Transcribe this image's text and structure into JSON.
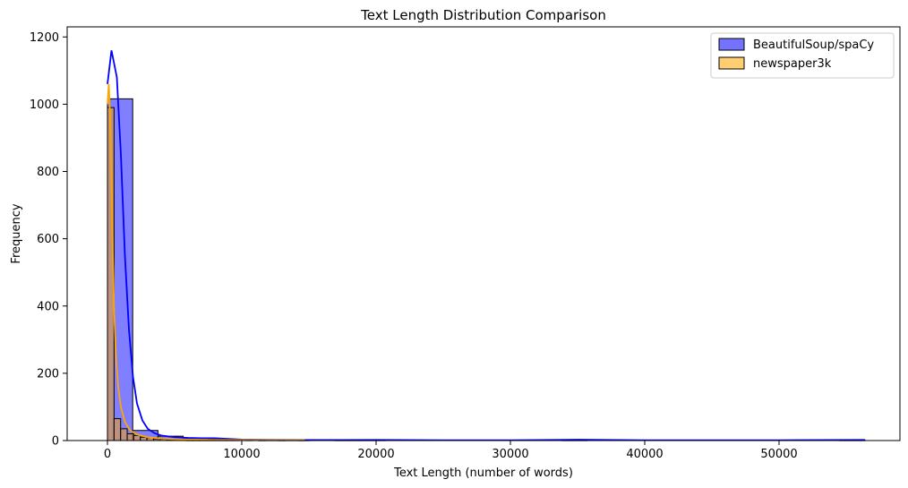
{
  "chart_data": {
    "type": "histogram",
    "title": "Text Length Distribution Comparison",
    "xlabel": "Text Length (number of words)",
    "ylabel": "Frequency",
    "xlim": [
      -3000,
      59000
    ],
    "ylim": [
      0,
      1230
    ],
    "xticks": [
      0,
      10000,
      20000,
      30000,
      40000,
      50000
    ],
    "yticks": [
      0,
      200,
      400,
      600,
      800,
      1000,
      1200
    ],
    "legend_position": "top-right",
    "series": [
      {
        "name": "BeautifulSoup/spaCy",
        "color": "#0000ff",
        "bin_width": 1880,
        "bins": [
          {
            "x0": 0,
            "x1": 1880,
            "count": 1016
          },
          {
            "x0": 1880,
            "x1": 3760,
            "count": 30
          },
          {
            "x0": 3760,
            "x1": 5640,
            "count": 13
          },
          {
            "x0": 5640,
            "x1": 7520,
            "count": 7
          },
          {
            "x0": 7520,
            "x1": 9400,
            "count": 5
          },
          {
            "x0": 9400,
            "x1": 11280,
            "count": 2
          },
          {
            "x0": 11280,
            "x1": 13160,
            "count": 1
          },
          {
            "x0": 13160,
            "x1": 15040,
            "count": 1
          },
          {
            "x0": 15040,
            "x1": 16920,
            "count": 0
          },
          {
            "x0": 16920,
            "x1": 18800,
            "count": 1
          },
          {
            "x0": 18800,
            "x1": 20680,
            "count": 1
          },
          {
            "x0": 20680,
            "x1": 22560,
            "count": 0
          },
          {
            "x0": 22560,
            "x1": 24440,
            "count": 0
          },
          {
            "x0": 24440,
            "x1": 26320,
            "count": 0
          },
          {
            "x0": 26320,
            "x1": 28200,
            "count": 0
          },
          {
            "x0": 28200,
            "x1": 30080,
            "count": 0
          },
          {
            "x0": 30080,
            "x1": 31960,
            "count": 0
          },
          {
            "x0": 31960,
            "x1": 33840,
            "count": 0
          },
          {
            "x0": 33840,
            "x1": 35720,
            "count": 1
          },
          {
            "x0": 35720,
            "x1": 37600,
            "count": 0
          },
          {
            "x0": 37600,
            "x1": 39480,
            "count": 0
          },
          {
            "x0": 39480,
            "x1": 41360,
            "count": 0
          },
          {
            "x0": 41360,
            "x1": 43240,
            "count": 0
          },
          {
            "x0": 43240,
            "x1": 45120,
            "count": 0
          },
          {
            "x0": 45120,
            "x1": 47000,
            "count": 0
          },
          {
            "x0": 47000,
            "x1": 48880,
            "count": 0
          },
          {
            "x0": 48880,
            "x1": 50760,
            "count": 0
          },
          {
            "x0": 50760,
            "x1": 52640,
            "count": 0
          },
          {
            "x0": 52640,
            "x1": 54520,
            "count": 0
          },
          {
            "x0": 54520,
            "x1": 56400,
            "count": 1
          }
        ],
        "kde": [
          [
            0,
            1060
          ],
          [
            300,
            1160
          ],
          [
            700,
            1080
          ],
          [
            1000,
            850
          ],
          [
            1300,
            550
          ],
          [
            1600,
            330
          ],
          [
            1900,
            190
          ],
          [
            2200,
            110
          ],
          [
            2600,
            60
          ],
          [
            3000,
            35
          ],
          [
            3500,
            22
          ],
          [
            4000,
            15
          ],
          [
            5000,
            10
          ],
          [
            6000,
            8
          ],
          [
            7000,
            7
          ],
          [
            8000,
            7
          ],
          [
            9000,
            5
          ],
          [
            10000,
            3
          ],
          [
            12000,
            2
          ],
          [
            15000,
            1.5
          ],
          [
            20000,
            2
          ],
          [
            25000,
            1
          ],
          [
            30000,
            1
          ],
          [
            35000,
            2.5
          ],
          [
            40000,
            1
          ],
          [
            45000,
            1
          ],
          [
            50000,
            1
          ],
          [
            56400,
            2
          ]
        ]
      },
      {
        "name": "newspaper3k",
        "color": "#ffa500",
        "bin_width": 490,
        "bins": [
          {
            "x0": 0,
            "x1": 490,
            "count": 990
          },
          {
            "x0": 490,
            "x1": 980,
            "count": 65
          },
          {
            "x0": 980,
            "x1": 1470,
            "count": 35
          },
          {
            "x0": 1470,
            "x1": 1960,
            "count": 20
          },
          {
            "x0": 1960,
            "x1": 2450,
            "count": 15
          },
          {
            "x0": 2450,
            "x1": 2940,
            "count": 10
          },
          {
            "x0": 2940,
            "x1": 3430,
            "count": 8
          },
          {
            "x0": 3430,
            "x1": 3920,
            "count": 5
          },
          {
            "x0": 3920,
            "x1": 4410,
            "count": 4
          },
          {
            "x0": 4410,
            "x1": 4900,
            "count": 3
          },
          {
            "x0": 4900,
            "x1": 5390,
            "count": 2
          },
          {
            "x0": 5390,
            "x1": 5880,
            "count": 2
          },
          {
            "x0": 5880,
            "x1": 6370,
            "count": 1
          },
          {
            "x0": 6370,
            "x1": 6860,
            "count": 1
          },
          {
            "x0": 6860,
            "x1": 7350,
            "count": 1
          },
          {
            "x0": 7350,
            "x1": 7840,
            "count": 1
          },
          {
            "x0": 7840,
            "x1": 8330,
            "count": 1
          },
          {
            "x0": 8330,
            "x1": 8820,
            "count": 1
          },
          {
            "x0": 8820,
            "x1": 9310,
            "count": 1
          },
          {
            "x0": 9310,
            "x1": 9800,
            "count": 1
          },
          {
            "x0": 9800,
            "x1": 10290,
            "count": 0
          },
          {
            "x0": 10290,
            "x1": 10780,
            "count": 1
          },
          {
            "x0": 10780,
            "x1": 11270,
            "count": 0
          },
          {
            "x0": 11270,
            "x1": 11760,
            "count": 1
          },
          {
            "x0": 11760,
            "x1": 12250,
            "count": 0
          },
          {
            "x0": 12250,
            "x1": 12740,
            "count": 0
          },
          {
            "x0": 12740,
            "x1": 13230,
            "count": 1
          },
          {
            "x0": 13230,
            "x1": 13720,
            "count": 0
          },
          {
            "x0": 13720,
            "x1": 14210,
            "count": 0
          },
          {
            "x0": 14210,
            "x1": 14700,
            "count": 1
          }
        ],
        "kde": [
          [
            0,
            1000
          ],
          [
            100,
            1060
          ],
          [
            200,
            960
          ],
          [
            300,
            770
          ],
          [
            400,
            560
          ],
          [
            500,
            380
          ],
          [
            650,
            240
          ],
          [
            800,
            160
          ],
          [
            1000,
            100
          ],
          [
            1300,
            55
          ],
          [
            1700,
            30
          ],
          [
            2200,
            18
          ],
          [
            3000,
            10
          ],
          [
            4000,
            6
          ],
          [
            5000,
            4
          ],
          [
            6000,
            3
          ],
          [
            8000,
            2
          ],
          [
            10000,
            1.5
          ],
          [
            12000,
            1
          ],
          [
            14700,
            1
          ]
        ]
      }
    ]
  }
}
